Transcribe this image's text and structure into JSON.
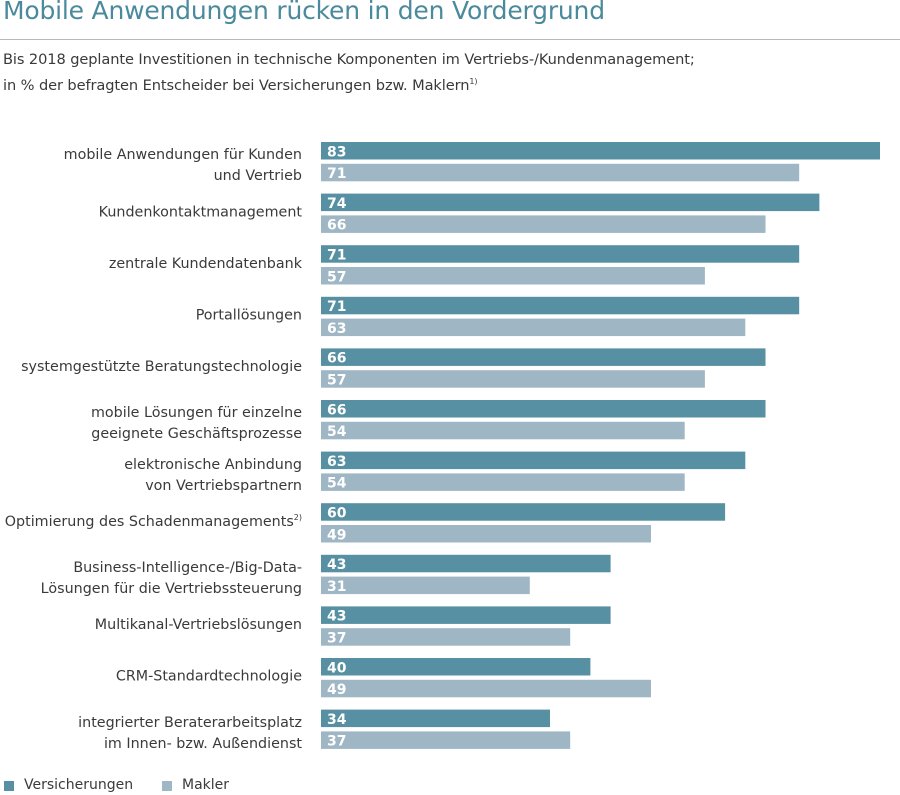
{
  "header": {
    "title": "Mobile Anwendungen rücken in den Vordergrund",
    "subtitle_line1": "Bis 2018 geplante Investitionen in technische Komponenten im Vertriebs-/Kundenmanagement;",
    "subtitle_line2": "in % der befragten Entscheider bei Versicherungen bzw. Maklern",
    "subtitle_footnote": "1)"
  },
  "colors": {
    "versicherungen": "#5690a2",
    "makler": "#9fb6c5",
    "title": "#4a8a9c",
    "text": "#3a3a3a"
  },
  "chart_data": {
    "type": "bar",
    "orientation": "horizontal",
    "categories": [
      [
        "mobile Anwendungen für Kunden",
        "und Vertrieb"
      ],
      [
        "Kundenkontaktmanagement"
      ],
      [
        "zentrale Kundendatenbank"
      ],
      [
        "Portallösungen"
      ],
      [
        "systemgestützte Beratungstechnologie"
      ],
      [
        "mobile Lösungen für einzelne",
        "geeignete Geschäftsprozesse"
      ],
      [
        "elektronische Anbindung",
        "von Vertriebspartnern"
      ],
      [
        "Optimierung des Schadenmanagements"
      ],
      [
        "Business-Intelligence-/Big-Data-",
        "Lösungen für die Vertriebssteuerung"
      ],
      [
        "Multikanal-Vertriebslösungen"
      ],
      [
        "CRM-Standardtechnologie"
      ],
      [
        "integrierter Beraterarbeitsplatz",
        "im Innen- bzw. Außendienst"
      ]
    ],
    "category_footnotes": [
      "",
      "",
      "",
      "",
      "",
      "",
      "",
      "2)",
      "",
      "",
      "",
      ""
    ],
    "series": [
      {
        "name": "Versicherungen",
        "values": [
          83,
          74,
          71,
          71,
          66,
          66,
          63,
          60,
          43,
          43,
          40,
          34
        ]
      },
      {
        "name": "Makler",
        "values": [
          71,
          66,
          57,
          63,
          57,
          54,
          54,
          49,
          31,
          37,
          49,
          37
        ]
      }
    ],
    "xlim": [
      0,
      83
    ],
    "grid": false,
    "legend": "bottom-left",
    "data_labels": "inside-left"
  }
}
